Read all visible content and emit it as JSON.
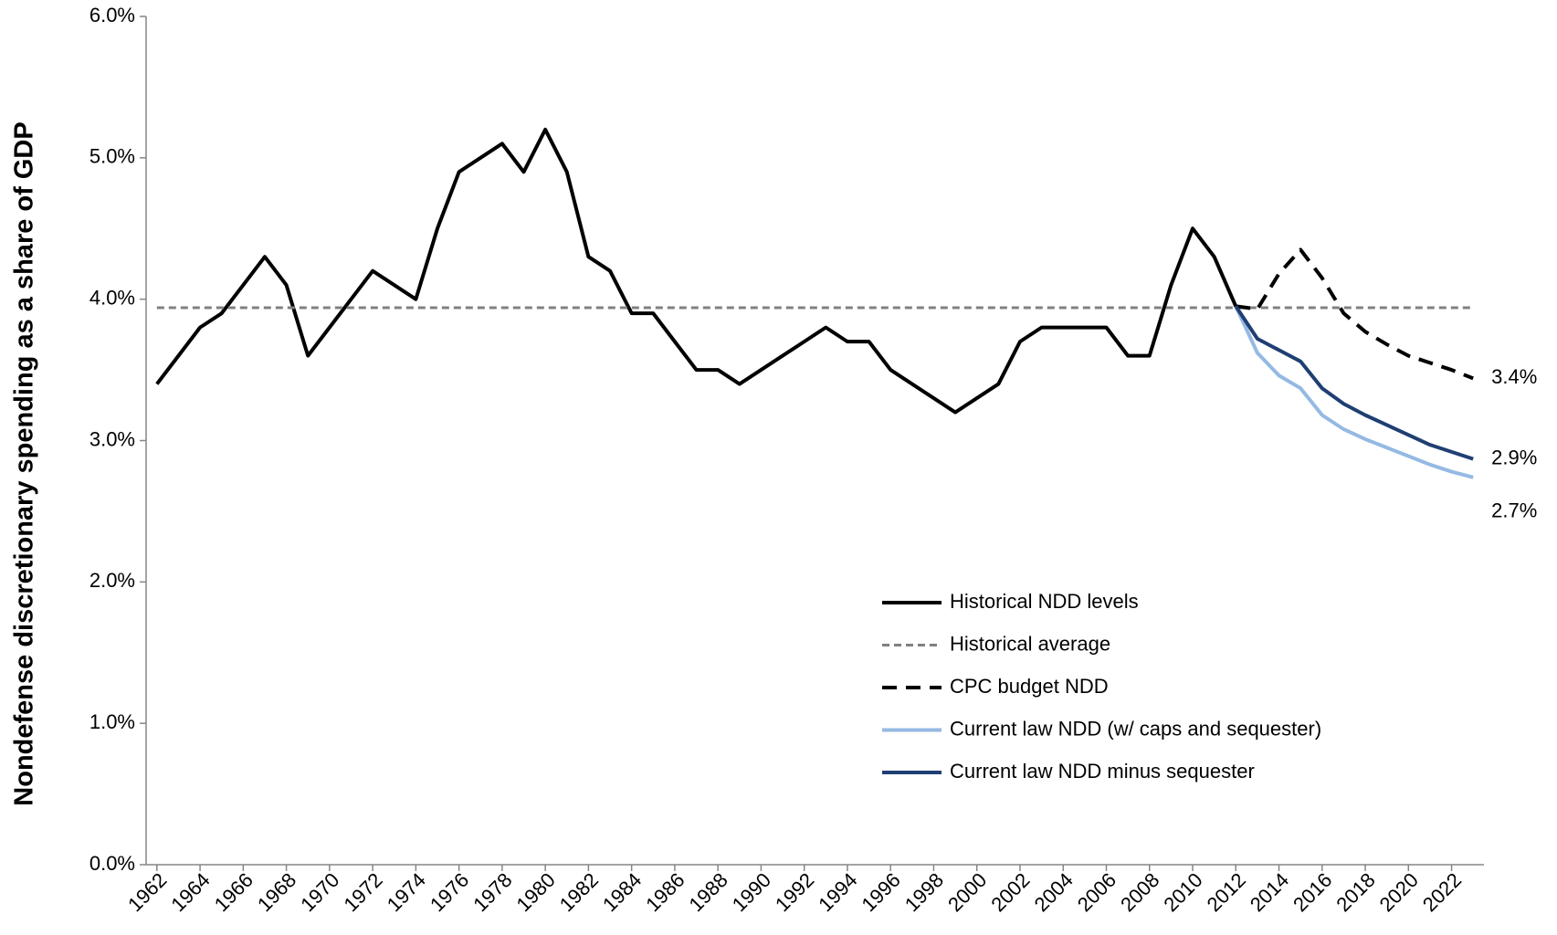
{
  "chart_data": {
    "type": "line",
    "y_axis_label": "Nondefense discretionary spending as a share of GDP",
    "x": [
      1962,
      1963,
      1964,
      1965,
      1966,
      1967,
      1968,
      1969,
      1970,
      1971,
      1972,
      1973,
      1974,
      1975,
      1976,
      1977,
      1978,
      1979,
      1980,
      1981,
      1982,
      1983,
      1984,
      1985,
      1986,
      1987,
      1988,
      1989,
      1990,
      1991,
      1992,
      1993,
      1994,
      1995,
      1996,
      1997,
      1998,
      1999,
      2000,
      2001,
      2002,
      2003,
      2004,
      2005,
      2006,
      2007,
      2008,
      2009,
      2010,
      2011,
      2012,
      2013,
      2014,
      2015,
      2016,
      2017,
      2018,
      2019,
      2020,
      2021,
      2022,
      2023
    ],
    "xlim": [
      1961.5,
      2023.5
    ],
    "xticks": [
      1962,
      1964,
      1966,
      1968,
      1970,
      1972,
      1974,
      1976,
      1978,
      1980,
      1982,
      1984,
      1986,
      1988,
      1990,
      1992,
      1994,
      1996,
      1998,
      2000,
      2002,
      2004,
      2006,
      2008,
      2010,
      2012,
      2014,
      2016,
      2018,
      2020,
      2022
    ],
    "ylim": [
      0,
      6
    ],
    "yticks": [
      {
        "value": 0,
        "label": "0.0%"
      },
      {
        "value": 1,
        "label": "1.0%"
      },
      {
        "value": 2,
        "label": "2.0%"
      },
      {
        "value": 3,
        "label": "3.0%"
      },
      {
        "value": 4,
        "label": "4.0%"
      },
      {
        "value": 5,
        "label": "5.0%"
      },
      {
        "value": 6,
        "label": "6.0%"
      }
    ],
    "grid": false,
    "series": [
      {
        "name": "Historical NDD levels",
        "color": "#000000",
        "line_style": "solid",
        "line_width": 4,
        "values": [
          3.4,
          3.6,
          3.8,
          3.9,
          4.1,
          4.3,
          4.1,
          3.6,
          3.8,
          4.0,
          4.2,
          4.1,
          4.0,
          4.5,
          4.9,
          5.0,
          5.1,
          4.9,
          5.2,
          4.9,
          4.3,
          4.2,
          3.9,
          3.9,
          3.7,
          3.5,
          3.5,
          3.4,
          3.5,
          3.6,
          3.7,
          3.8,
          3.7,
          3.7,
          3.5,
          3.4,
          3.3,
          3.2,
          3.3,
          3.4,
          3.7,
          3.8,
          3.8,
          3.8,
          3.8,
          3.6,
          3.6,
          4.1,
          4.5,
          4.3,
          3.95,
          null,
          null,
          null,
          null,
          null,
          null,
          null,
          null,
          null,
          null,
          null
        ]
      },
      {
        "name": "Historical average",
        "color": "#808080",
        "line_style": "dotted",
        "line_width": 3,
        "values": [
          3.94,
          3.94,
          3.94,
          3.94,
          3.94,
          3.94,
          3.94,
          3.94,
          3.94,
          3.94,
          3.94,
          3.94,
          3.94,
          3.94,
          3.94,
          3.94,
          3.94,
          3.94,
          3.94,
          3.94,
          3.94,
          3.94,
          3.94,
          3.94,
          3.94,
          3.94,
          3.94,
          3.94,
          3.94,
          3.94,
          3.94,
          3.94,
          3.94,
          3.94,
          3.94,
          3.94,
          3.94,
          3.94,
          3.94,
          3.94,
          3.94,
          3.94,
          3.94,
          3.94,
          3.94,
          3.94,
          3.94,
          3.94,
          3.94,
          3.94,
          3.94,
          3.94,
          3.94,
          3.94,
          3.94,
          3.94,
          3.94,
          3.94,
          3.94,
          3.94,
          3.94,
          3.94
        ]
      },
      {
        "name": "CPC budget NDD",
        "color": "#000000",
        "line_style": "dashed",
        "line_width": 4,
        "end_label": "3.4%",
        "values": [
          null,
          null,
          null,
          null,
          null,
          null,
          null,
          null,
          null,
          null,
          null,
          null,
          null,
          null,
          null,
          null,
          null,
          null,
          null,
          null,
          null,
          null,
          null,
          null,
          null,
          null,
          null,
          null,
          null,
          null,
          null,
          null,
          null,
          null,
          null,
          null,
          null,
          null,
          null,
          null,
          null,
          null,
          null,
          null,
          null,
          null,
          null,
          null,
          null,
          null,
          3.95,
          3.93,
          4.18,
          4.35,
          4.15,
          3.9,
          3.77,
          3.68,
          3.6,
          3.55,
          3.5,
          3.44
        ]
      },
      {
        "name": "Current law NDD (w/ caps and sequester)",
        "color": "#95b9e3",
        "line_style": "solid",
        "line_width": 4,
        "end_label": "2.7%",
        "values": [
          null,
          null,
          null,
          null,
          null,
          null,
          null,
          null,
          null,
          null,
          null,
          null,
          null,
          null,
          null,
          null,
          null,
          null,
          null,
          null,
          null,
          null,
          null,
          null,
          null,
          null,
          null,
          null,
          null,
          null,
          null,
          null,
          null,
          null,
          null,
          null,
          null,
          null,
          null,
          null,
          null,
          null,
          null,
          null,
          null,
          null,
          null,
          null,
          null,
          null,
          3.95,
          3.62,
          3.46,
          3.37,
          3.18,
          3.08,
          3.01,
          2.95,
          2.89,
          2.83,
          2.78,
          2.74
        ]
      },
      {
        "name": "Current law NDD minus sequester",
        "color": "#1f3f73",
        "line_style": "solid",
        "line_width": 4,
        "end_label": "2.9%",
        "values": [
          null,
          null,
          null,
          null,
          null,
          null,
          null,
          null,
          null,
          null,
          null,
          null,
          null,
          null,
          null,
          null,
          null,
          null,
          null,
          null,
          null,
          null,
          null,
          null,
          null,
          null,
          null,
          null,
          null,
          null,
          null,
          null,
          null,
          null,
          null,
          null,
          null,
          null,
          null,
          null,
          null,
          null,
          null,
          null,
          null,
          null,
          null,
          null,
          null,
          null,
          3.95,
          3.72,
          3.64,
          3.56,
          3.37,
          3.26,
          3.18,
          3.11,
          3.04,
          2.97,
          2.92,
          2.87
        ]
      }
    ]
  }
}
